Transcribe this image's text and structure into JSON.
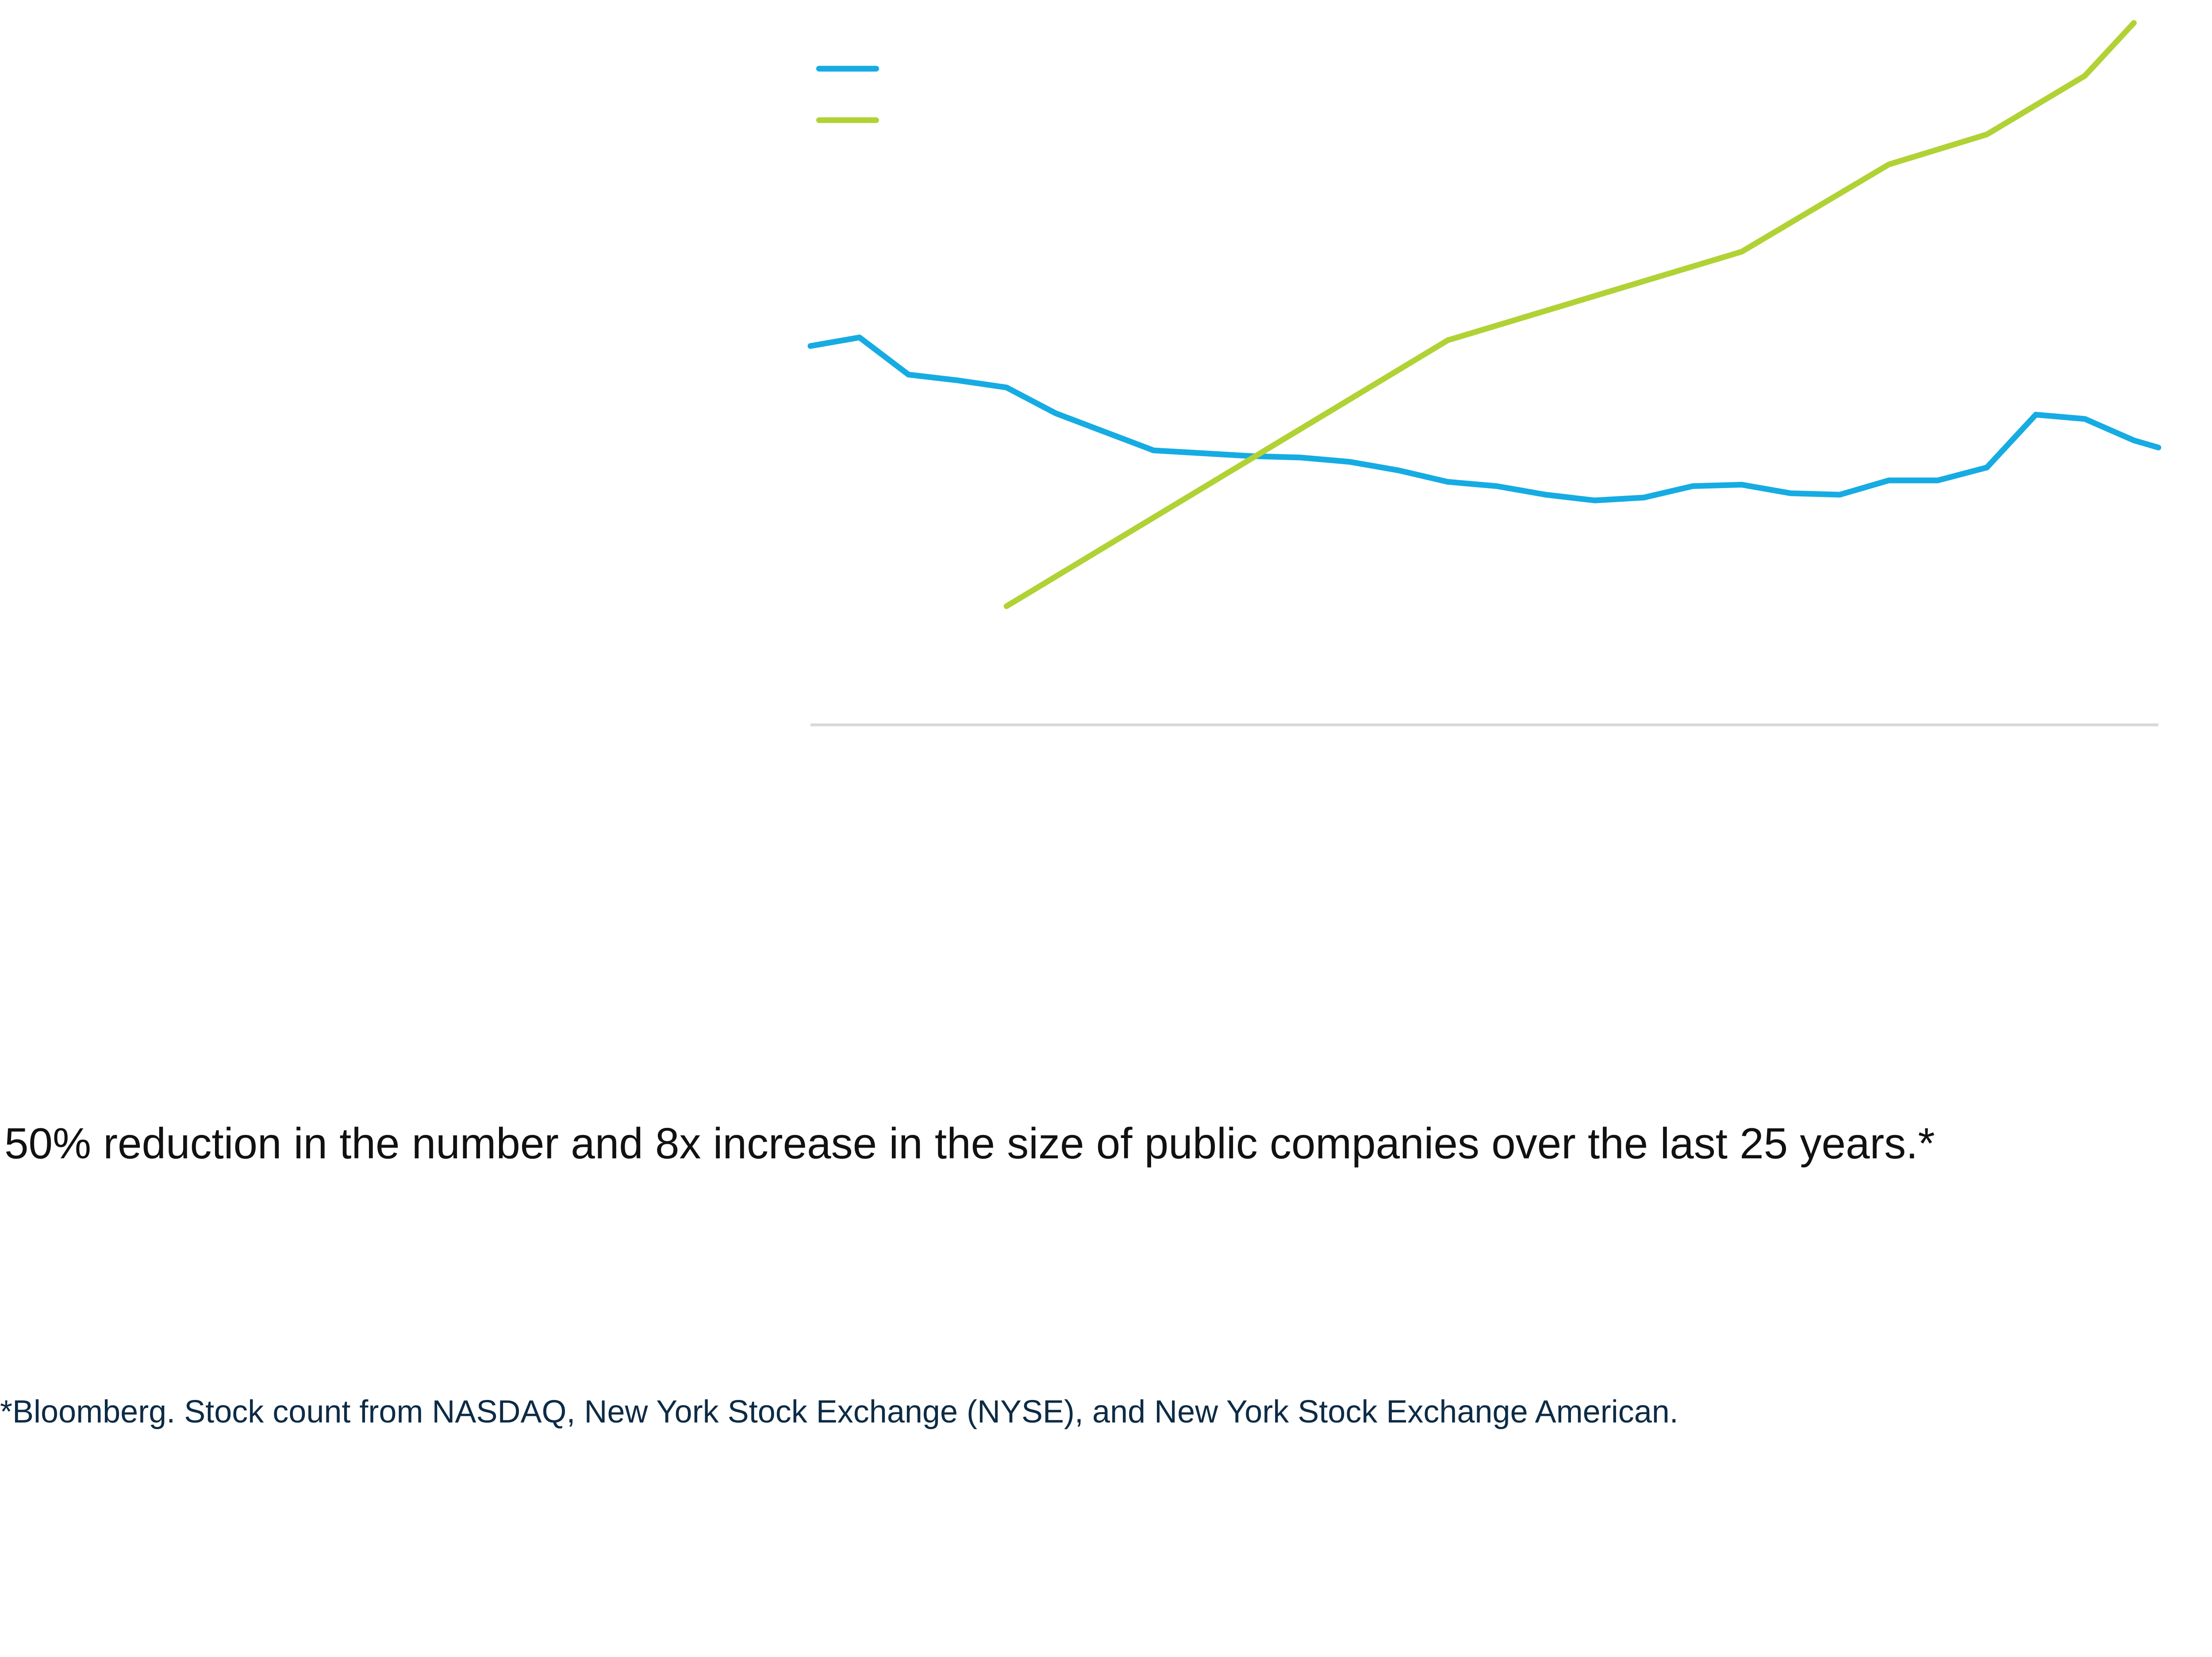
{
  "colors": {
    "series1": "#16ace3",
    "series2": "#b1d235",
    "axis": "#d9d9d9"
  },
  "chart_data": {
    "type": "line",
    "title": "",
    "xlabel": "",
    "ylabel": "",
    "note": "No axis tick labels or legend text are visible; x values are period indices and y values are relative units read off the plot height.",
    "xlim": [
      0,
      27.5
    ],
    "ylim": [
      0,
      500
    ],
    "legend": "top-left",
    "series": [
      {
        "name": "",
        "color": "#16ace3",
        "x": [
          0,
          1,
          2,
          3,
          4,
          5,
          6,
          7,
          8,
          9,
          10,
          11,
          12,
          13,
          14,
          15,
          16,
          17,
          18,
          19,
          20,
          21,
          22,
          23,
          24,
          25,
          26,
          27,
          27.5
        ],
        "values": [
          265,
          271,
          245,
          241,
          236,
          218,
          205,
          192,
          190,
          188,
          187,
          184,
          178,
          170,
          167,
          161,
          157,
          159,
          167,
          168,
          162,
          161,
          171,
          171,
          180,
          217,
          214,
          199,
          194
        ]
      },
      {
        "name": "",
        "color": "#b1d235",
        "x": [
          4,
          13,
          19,
          22,
          24,
          26,
          27
        ],
        "values": [
          83,
          269,
          331,
          392,
          413,
          454,
          491
        ]
      }
    ]
  },
  "headline": "50% reduction in the number and 8x increase in the size of public companies over the last 25 years.*",
  "footnote": "*Bloomberg. Stock count from NASDAQ, New York Stock Exchange (NYSE), and New York Stock Exchange American."
}
